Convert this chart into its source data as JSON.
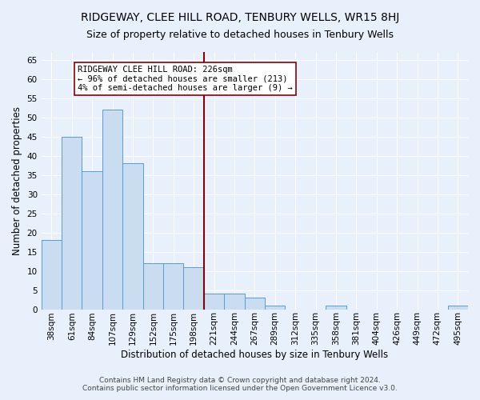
{
  "title": "RIDGEWAY, CLEE HILL ROAD, TENBURY WELLS, WR15 8HJ",
  "subtitle": "Size of property relative to detached houses in Tenbury Wells",
  "xlabel": "Distribution of detached houses by size in Tenbury Wells",
  "ylabel": "Number of detached properties",
  "categories": [
    "38sqm",
    "61sqm",
    "84sqm",
    "107sqm",
    "129sqm",
    "152sqm",
    "175sqm",
    "198sqm",
    "221sqm",
    "244sqm",
    "267sqm",
    "289sqm",
    "312sqm",
    "335sqm",
    "358sqm",
    "381sqm",
    "404sqm",
    "426sqm",
    "449sqm",
    "472sqm",
    "495sqm"
  ],
  "values": [
    18,
    45,
    36,
    52,
    38,
    12,
    12,
    11,
    4,
    4,
    3,
    1,
    0,
    0,
    1,
    0,
    0,
    0,
    0,
    0,
    1
  ],
  "bar_color": "#c9dcf0",
  "bar_edge_color": "#5b9bd5",
  "vline_x_index": 8,
  "vline_color": "#8b0000",
  "annotation_title": "RIDGEWAY CLEE HILL ROAD: 226sqm",
  "annotation_line1": "← 96% of detached houses are smaller (213)",
  "annotation_line2": "4% of semi-detached houses are larger (9) →",
  "annotation_box_color": "#ffffff",
  "annotation_box_edge": "#8b0000",
  "ylim": [
    0,
    67
  ],
  "yticks": [
    0,
    5,
    10,
    15,
    20,
    25,
    30,
    35,
    40,
    45,
    50,
    55,
    60,
    65
  ],
  "footnote1": "Contains HM Land Registry data © Crown copyright and database right 2024.",
  "footnote2": "Contains public sector information licensed under the Open Government Licence v3.0.",
  "bg_color": "#e8f0fb",
  "grid_color": "#ffffff",
  "title_fontsize": 10,
  "subtitle_fontsize": 9,
  "xlabel_fontsize": 8.5,
  "ylabel_fontsize": 8.5,
  "tick_fontsize": 7.5,
  "annotation_fontsize": 7.5,
  "footnote_fontsize": 6.5
}
